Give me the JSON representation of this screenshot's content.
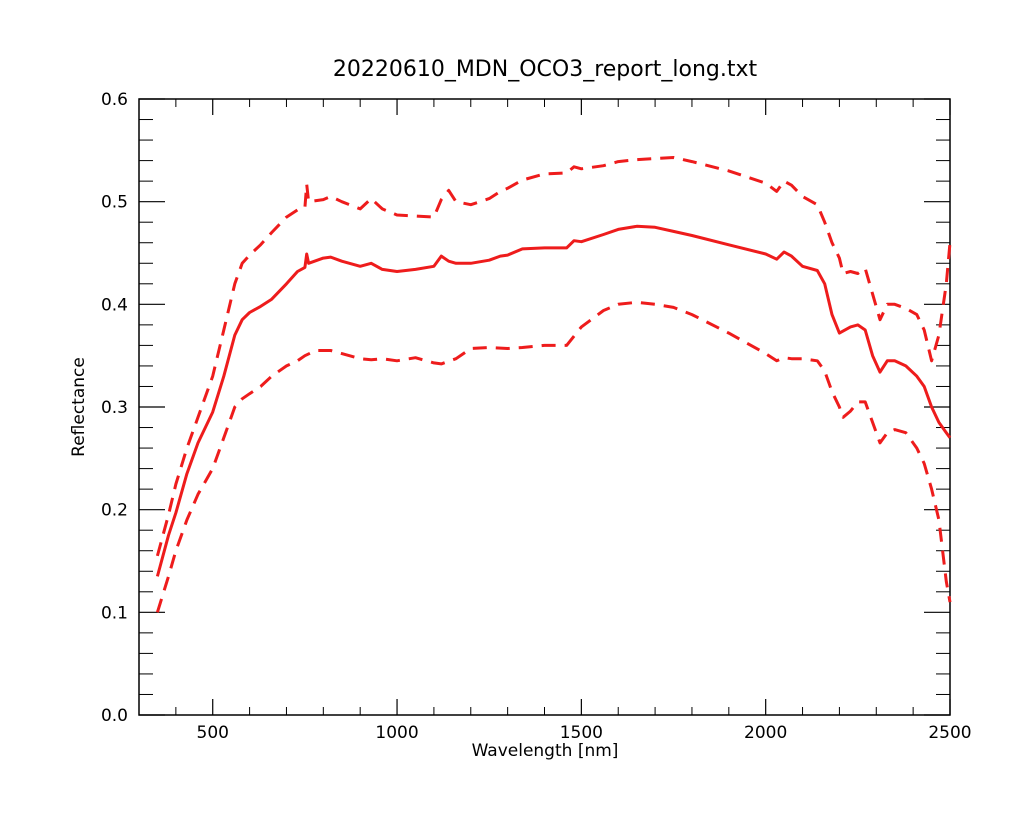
{
  "chart_data": {
    "type": "line",
    "title": "20220610_MDN_OCO3_report_long.txt",
    "xlabel": "Wavelength [nm]",
    "ylabel": "Reflectance",
    "xlim": [
      300,
      2500
    ],
    "ylim": [
      0.0,
      0.6
    ],
    "x_ticks": [
      500,
      1000,
      1500,
      2000,
      2500
    ],
    "x_tick_labels": [
      "500",
      "1000",
      "1500",
      "2000",
      "2500"
    ],
    "x_minor_step": 100,
    "y_ticks": [
      0.0,
      0.1,
      0.2,
      0.3,
      0.4,
      0.5,
      0.6
    ],
    "y_tick_labels": [
      "0.0",
      "0.1",
      "0.2",
      "0.3",
      "0.4",
      "0.5",
      "0.6"
    ],
    "y_minor_step": 0.02,
    "grid": false,
    "legend": "none",
    "color": "#ee1c1c",
    "series": [
      {
        "style": "solid",
        "points": [
          [
            350,
            0.135
          ],
          [
            380,
            0.175
          ],
          [
            400,
            0.197
          ],
          [
            430,
            0.235
          ],
          [
            460,
            0.265
          ],
          [
            500,
            0.295
          ],
          [
            530,
            0.33
          ],
          [
            560,
            0.37
          ],
          [
            580,
            0.385
          ],
          [
            600,
            0.392
          ],
          [
            630,
            0.398
          ],
          [
            660,
            0.405
          ],
          [
            700,
            0.42
          ],
          [
            730,
            0.432
          ],
          [
            750,
            0.436
          ],
          [
            755,
            0.449
          ],
          [
            760,
            0.44
          ],
          [
            800,
            0.445
          ],
          [
            820,
            0.446
          ],
          [
            850,
            0.442
          ],
          [
            900,
            0.437
          ],
          [
            930,
            0.44
          ],
          [
            960,
            0.434
          ],
          [
            1000,
            0.432
          ],
          [
            1050,
            0.434
          ],
          [
            1100,
            0.437
          ],
          [
            1120,
            0.447
          ],
          [
            1140,
            0.442
          ],
          [
            1160,
            0.44
          ],
          [
            1200,
            0.44
          ],
          [
            1250,
            0.443
          ],
          [
            1280,
            0.447
          ],
          [
            1300,
            0.448
          ],
          [
            1340,
            0.454
          ],
          [
            1400,
            0.455
          ],
          [
            1460,
            0.455
          ],
          [
            1480,
            0.462
          ],
          [
            1500,
            0.461
          ],
          [
            1560,
            0.468
          ],
          [
            1600,
            0.473
          ],
          [
            1650,
            0.476
          ],
          [
            1700,
            0.475
          ],
          [
            1750,
            0.471
          ],
          [
            1800,
            0.467
          ],
          [
            1900,
            0.458
          ],
          [
            2000,
            0.449
          ],
          [
            2030,
            0.444
          ],
          [
            2050,
            0.451
          ],
          [
            2070,
            0.447
          ],
          [
            2100,
            0.437
          ],
          [
            2140,
            0.433
          ],
          [
            2160,
            0.42
          ],
          [
            2180,
            0.39
          ],
          [
            2200,
            0.372
          ],
          [
            2230,
            0.378
          ],
          [
            2250,
            0.38
          ],
          [
            2270,
            0.375
          ],
          [
            2290,
            0.35
          ],
          [
            2310,
            0.334
          ],
          [
            2330,
            0.345
          ],
          [
            2350,
            0.345
          ],
          [
            2380,
            0.34
          ],
          [
            2410,
            0.33
          ],
          [
            2430,
            0.32
          ],
          [
            2450,
            0.3
          ],
          [
            2470,
            0.285
          ],
          [
            2490,
            0.275
          ],
          [
            2500,
            0.27
          ]
        ]
      },
      {
        "style": "dashed",
        "points": [
          [
            350,
            0.155
          ],
          [
            380,
            0.195
          ],
          [
            400,
            0.225
          ],
          [
            430,
            0.26
          ],
          [
            460,
            0.29
          ],
          [
            500,
            0.33
          ],
          [
            530,
            0.375
          ],
          [
            560,
            0.42
          ],
          [
            580,
            0.44
          ],
          [
            600,
            0.448
          ],
          [
            630,
            0.458
          ],
          [
            660,
            0.47
          ],
          [
            700,
            0.485
          ],
          [
            730,
            0.492
          ],
          [
            750,
            0.494
          ],
          [
            755,
            0.517
          ],
          [
            760,
            0.5
          ],
          [
            800,
            0.502
          ],
          [
            820,
            0.505
          ],
          [
            850,
            0.5
          ],
          [
            900,
            0.493
          ],
          [
            930,
            0.503
          ],
          [
            960,
            0.493
          ],
          [
            1000,
            0.487
          ],
          [
            1050,
            0.486
          ],
          [
            1100,
            0.485
          ],
          [
            1120,
            0.502
          ],
          [
            1140,
            0.511
          ],
          [
            1160,
            0.5
          ],
          [
            1200,
            0.497
          ],
          [
            1250,
            0.503
          ],
          [
            1280,
            0.51
          ],
          [
            1300,
            0.513
          ],
          [
            1340,
            0.521
          ],
          [
            1400,
            0.527
          ],
          [
            1460,
            0.528
          ],
          [
            1480,
            0.534
          ],
          [
            1500,
            0.532
          ],
          [
            1560,
            0.535
          ],
          [
            1600,
            0.539
          ],
          [
            1650,
            0.541
          ],
          [
            1700,
            0.542
          ],
          [
            1750,
            0.543
          ],
          [
            1800,
            0.539
          ],
          [
            1900,
            0.53
          ],
          [
            2000,
            0.518
          ],
          [
            2030,
            0.51
          ],
          [
            2050,
            0.52
          ],
          [
            2070,
            0.516
          ],
          [
            2100,
            0.505
          ],
          [
            2140,
            0.497
          ],
          [
            2160,
            0.48
          ],
          [
            2180,
            0.46
          ],
          [
            2200,
            0.445
          ],
          [
            2210,
            0.43
          ],
          [
            2230,
            0.432
          ],
          [
            2250,
            0.43
          ],
          [
            2270,
            0.435
          ],
          [
            2290,
            0.41
          ],
          [
            2310,
            0.385
          ],
          [
            2330,
            0.4
          ],
          [
            2350,
            0.4
          ],
          [
            2380,
            0.396
          ],
          [
            2410,
            0.39
          ],
          [
            2430,
            0.375
          ],
          [
            2450,
            0.345
          ],
          [
            2470,
            0.37
          ],
          [
            2490,
            0.42
          ],
          [
            2500,
            0.46
          ]
        ]
      },
      {
        "style": "dashed",
        "points": [
          [
            350,
            0.1
          ],
          [
            380,
            0.135
          ],
          [
            400,
            0.16
          ],
          [
            430,
            0.19
          ],
          [
            460,
            0.215
          ],
          [
            500,
            0.24
          ],
          [
            530,
            0.27
          ],
          [
            560,
            0.3
          ],
          [
            580,
            0.308
          ],
          [
            600,
            0.313
          ],
          [
            630,
            0.32
          ],
          [
            660,
            0.33
          ],
          [
            700,
            0.34
          ],
          [
            730,
            0.345
          ],
          [
            750,
            0.35
          ],
          [
            780,
            0.355
          ],
          [
            820,
            0.355
          ],
          [
            850,
            0.352
          ],
          [
            900,
            0.347
          ],
          [
            930,
            0.346
          ],
          [
            960,
            0.347
          ],
          [
            1000,
            0.345
          ],
          [
            1050,
            0.348
          ],
          [
            1100,
            0.343
          ],
          [
            1120,
            0.342
          ],
          [
            1160,
            0.347
          ],
          [
            1200,
            0.357
          ],
          [
            1250,
            0.358
          ],
          [
            1300,
            0.357
          ],
          [
            1340,
            0.358
          ],
          [
            1400,
            0.36
          ],
          [
            1460,
            0.36
          ],
          [
            1500,
            0.378
          ],
          [
            1560,
            0.394
          ],
          [
            1600,
            0.4
          ],
          [
            1650,
            0.402
          ],
          [
            1700,
            0.4
          ],
          [
            1750,
            0.397
          ],
          [
            1800,
            0.39
          ],
          [
            1900,
            0.372
          ],
          [
            2000,
            0.352
          ],
          [
            2030,
            0.345
          ],
          [
            2050,
            0.348
          ],
          [
            2070,
            0.347
          ],
          [
            2100,
            0.347
          ],
          [
            2140,
            0.345
          ],
          [
            2160,
            0.335
          ],
          [
            2180,
            0.315
          ],
          [
            2200,
            0.3
          ],
          [
            2210,
            0.29
          ],
          [
            2230,
            0.296
          ],
          [
            2250,
            0.305
          ],
          [
            2270,
            0.305
          ],
          [
            2290,
            0.285
          ],
          [
            2310,
            0.265
          ],
          [
            2330,
            0.275
          ],
          [
            2350,
            0.278
          ],
          [
            2380,
            0.275
          ],
          [
            2410,
            0.26
          ],
          [
            2430,
            0.245
          ],
          [
            2450,
            0.22
          ],
          [
            2470,
            0.19
          ],
          [
            2490,
            0.13
          ],
          [
            2500,
            0.11
          ]
        ]
      }
    ]
  }
}
